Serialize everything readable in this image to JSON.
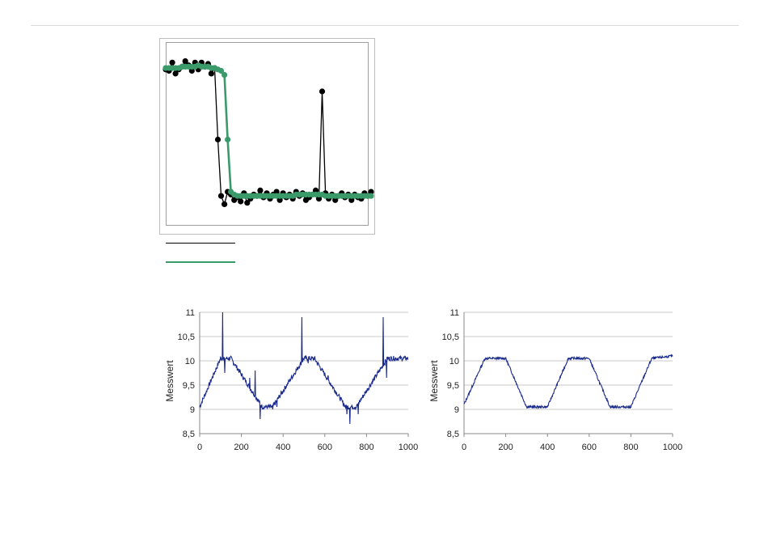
{
  "colors": {
    "raw": "#000000",
    "filtered": "#3a9a6a",
    "noisy_line": "#1a2a8a",
    "grid": "#c8c8c8"
  },
  "chart_data": [
    {
      "type": "line",
      "title": "",
      "xlabel": "",
      "ylabel": "",
      "grid": false,
      "legend": "below-left",
      "x": [
        0,
        1,
        2,
        3,
        4,
        5,
        6,
        7,
        8,
        9,
        10,
        11,
        12,
        13,
        14,
        15,
        16,
        17,
        18,
        19,
        20,
        21,
        22,
        23,
        24,
        25,
        26,
        27,
        28,
        29,
        30,
        31,
        32,
        33,
        34,
        35,
        36,
        37,
        38,
        39,
        40,
        41,
        42,
        43,
        44,
        45,
        46,
        47,
        48,
        49,
        50,
        51,
        52,
        53,
        54,
        55,
        56,
        57,
        58,
        59,
        60,
        61,
        62,
        63
      ],
      "series": [
        {
          "name": "",
          "marker": "circle",
          "values": [
            0.96,
            0.95,
            1.01,
            0.93,
            0.96,
            0.98,
            1.02,
            0.99,
            0.95,
            1.01,
            0.96,
            1.01,
            0.98,
            1.0,
            0.93,
            0.97,
            0.45,
            0.04,
            -0.02,
            0.07,
            0.05,
            0.01,
            0.03,
            0.0,
            0.06,
            -0.01,
            0.02,
            0.05,
            0.04,
            0.08,
            0.03,
            0.06,
            0.02,
            0.05,
            0.07,
            0.01,
            0.06,
            0.03,
            0.05,
            0.02,
            0.07,
            0.04,
            0.06,
            0.01,
            0.03,
            0.05,
            0.08,
            0.02,
            0.8,
            0.06,
            0.02,
            0.05,
            0.01,
            0.04,
            0.06,
            0.03,
            0.05,
            0.01,
            0.05,
            0.03,
            0.02,
            0.06,
            0.04,
            0.07
          ]
        },
        {
          "name": "",
          "marker": "circle",
          "values": [
            0.97,
            0.97,
            0.97,
            0.97,
            0.97,
            0.98,
            0.98,
            0.98,
            0.98,
            0.98,
            0.99,
            0.98,
            0.98,
            0.98,
            0.97,
            0.97,
            0.96,
            0.95,
            0.92,
            0.45,
            0.07,
            0.05,
            0.04,
            0.04,
            0.04,
            0.04,
            0.04,
            0.04,
            0.04,
            0.04,
            0.04,
            0.04,
            0.04,
            0.04,
            0.04,
            0.04,
            0.04,
            0.04,
            0.04,
            0.04,
            0.05,
            0.05,
            0.05,
            0.05,
            0.05,
            0.05,
            0.05,
            0.05,
            0.05,
            0.04,
            0.04,
            0.04,
            0.04,
            0.04,
            0.04,
            0.04,
            0.04,
            0.04,
            0.04,
            0.04,
            0.04,
            0.04,
            0.04,
            0.04
          ]
        }
      ],
      "legend_entries": [
        "",
        ""
      ]
    },
    {
      "type": "line",
      "title": "",
      "xlabel": "",
      "ylabel": "Messwert",
      "xlim": [
        0,
        1000
      ],
      "ylim": [
        8.5,
        11
      ],
      "xticks": [
        "0",
        "200",
        "400",
        "600",
        "800",
        "1000"
      ],
      "yticks": [
        "8,5",
        "9",
        "9,5",
        "10",
        "10,5",
        "11"
      ],
      "grid": true,
      "series": [
        {
          "name": "",
          "noise": "spiky",
          "x": [
            0,
            100,
            150,
            300,
            350,
            500,
            550,
            700,
            750,
            900,
            1000
          ],
          "values": [
            9.05,
            10.05,
            10.05,
            9.05,
            9.05,
            10.05,
            10.05,
            9.05,
            9.05,
            10.05,
            10.05
          ],
          "spikes": [
            [
              110,
              11.0
            ],
            [
              120,
              9.75
            ],
            [
              240,
              9.65
            ],
            [
              265,
              9.8
            ],
            [
              290,
              8.8
            ],
            [
              350,
              9.0
            ],
            [
              370,
              9.05
            ],
            [
              490,
              10.9
            ],
            [
              520,
              9.95
            ],
            [
              615,
              9.7
            ],
            [
              705,
              8.9
            ],
            [
              720,
              8.7
            ],
            [
              760,
              8.9
            ],
            [
              880,
              10.9
            ],
            [
              895,
              9.65
            ]
          ]
        }
      ]
    },
    {
      "type": "line",
      "title": "",
      "xlabel": "",
      "ylabel": "Messwert",
      "xlim": [
        0,
        1000
      ],
      "ylim": [
        8.5,
        11
      ],
      "xticks": [
        "0",
        "200",
        "400",
        "600",
        "800",
        "1000"
      ],
      "yticks": [
        "8,5",
        "9",
        "9,5",
        "10",
        "10,5",
        "11"
      ],
      "grid": true,
      "series": [
        {
          "name": "",
          "noise": "smooth",
          "x": [
            0,
            100,
            200,
            300,
            400,
            500,
            600,
            700,
            800,
            900,
            1000
          ],
          "values": [
            9.1,
            10.05,
            10.05,
            9.05,
            9.05,
            10.05,
            10.05,
            9.05,
            9.05,
            10.05,
            10.1
          ]
        }
      ]
    }
  ]
}
